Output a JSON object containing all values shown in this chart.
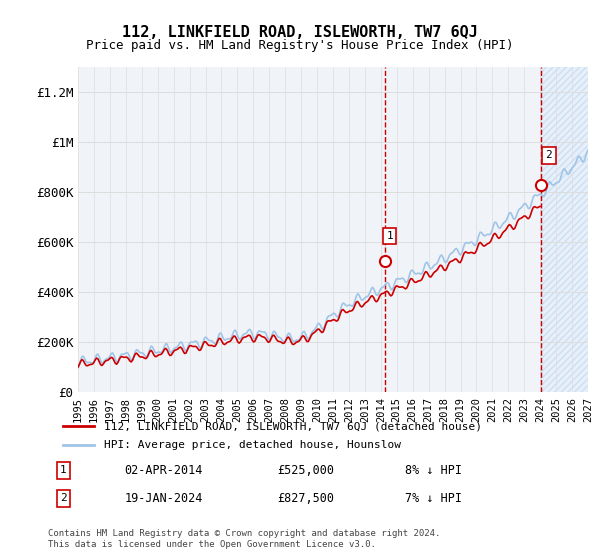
{
  "title": "112, LINKFIELD ROAD, ISLEWORTH, TW7 6QJ",
  "subtitle": "Price paid vs. HM Land Registry's House Price Index (HPI)",
  "ylim": [
    0,
    1300000
  ],
  "yticks": [
    0,
    200000,
    400000,
    600000,
    800000,
    1000000,
    1200000
  ],
  "ytick_labels": [
    "£0",
    "£200K",
    "£400K",
    "£600K",
    "£800K",
    "£1M",
    "£1.2M"
  ],
  "x_start_year": 1995,
  "x_end_year": 2027,
  "sale1_date": 2014.25,
  "sale1_price": 525000,
  "sale1_label": "1",
  "sale2_date": 2024.05,
  "sale2_price": 827500,
  "sale2_label": "2",
  "hpi_line_color": "#a0c4e8",
  "price_line_color": "#cc0000",
  "sale_dot_color": "#cc0000",
  "sale_marker_border": "#cc0000",
  "hatch_region_color": "#ddeeff",
  "hatch_color": "#c0d8f0",
  "vline_color": "#cc0000",
  "grid_color": "#dddddd",
  "legend_label_price": "112, LINKFIELD ROAD, ISLEWORTH, TW7 6QJ (detached house)",
  "legend_label_hpi": "HPI: Average price, detached house, Hounslow",
  "annotation1_date": "02-APR-2014",
  "annotation1_price": "£525,000",
  "annotation1_pct": "8% ↓ HPI",
  "annotation2_date": "19-JAN-2024",
  "annotation2_price": "£827,500",
  "annotation2_pct": "7% ↓ HPI",
  "footer": "Contains HM Land Registry data © Crown copyright and database right 2024.\nThis data is licensed under the Open Government Licence v3.0.",
  "background_color": "#ffffff",
  "plot_bg_color": "#f0f4f8"
}
